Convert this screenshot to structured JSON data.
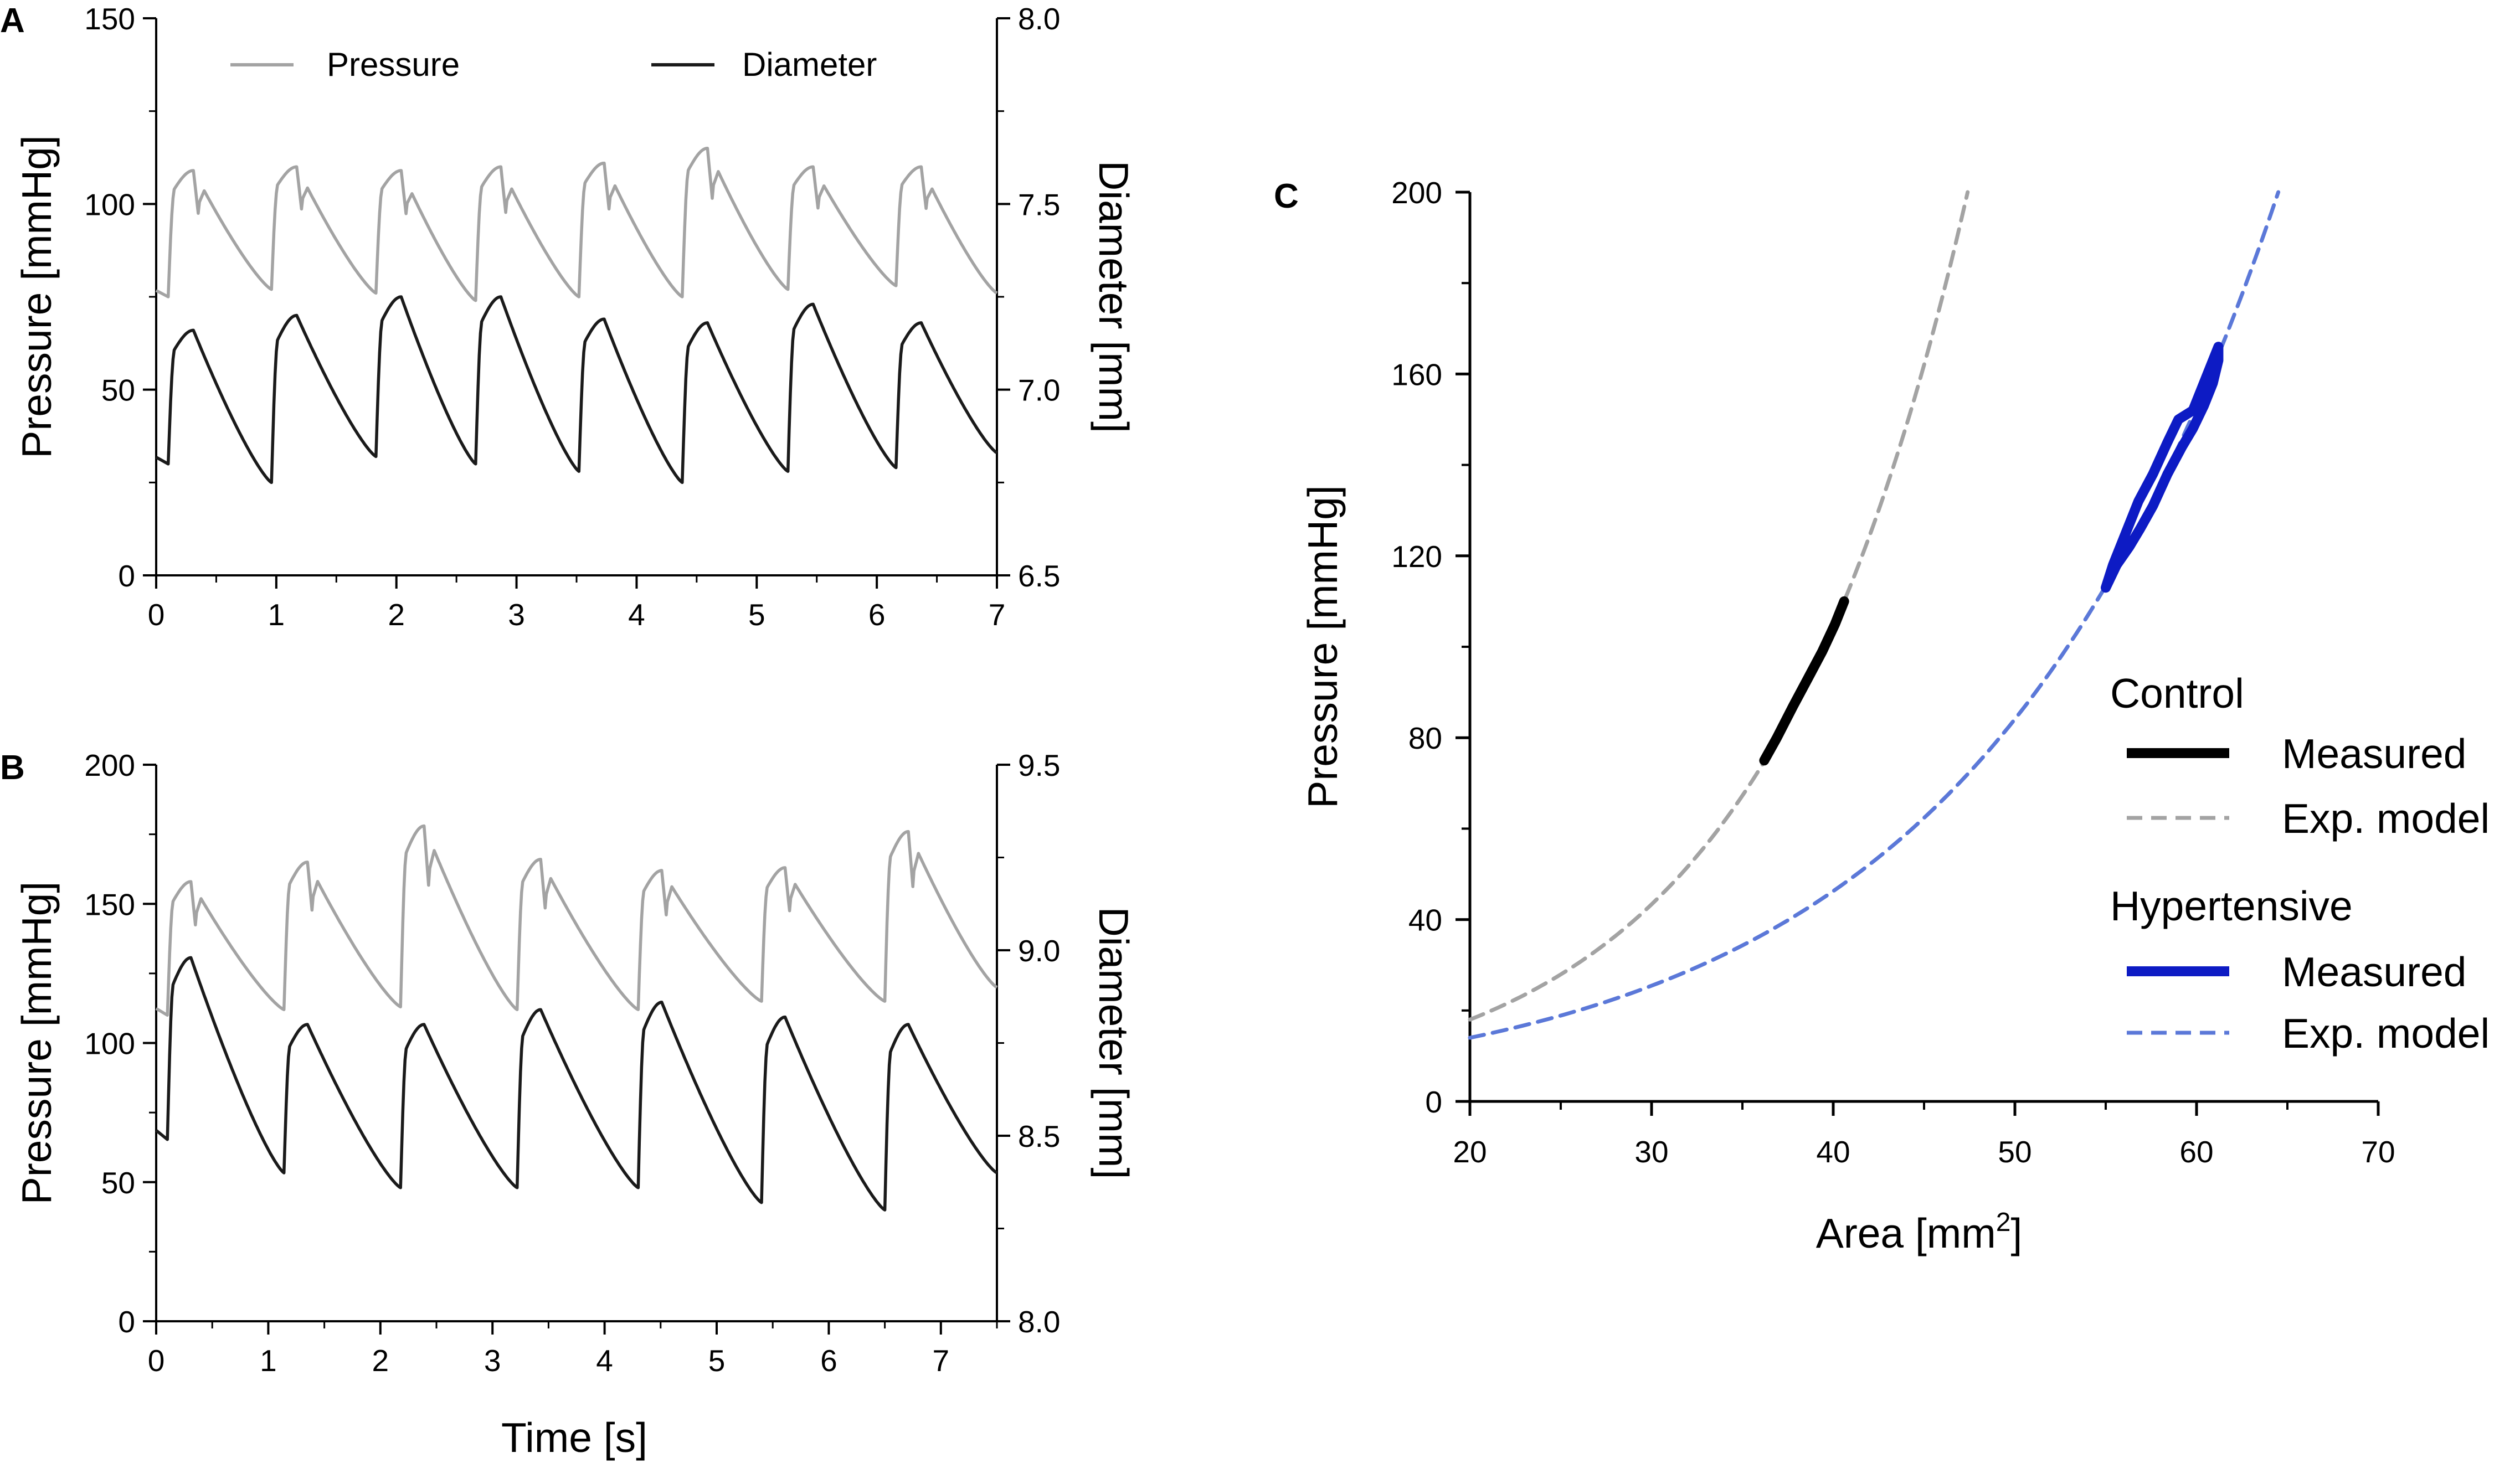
{
  "chart_data": [
    {
      "panel": "A",
      "type": "line",
      "xlabel": "",
      "ylabel_left": "Pressure [mmHg]",
      "ylabel_right": "Diameter [mm]",
      "xlim": [
        0,
        7
      ],
      "ylim_left": [
        0,
        150
      ],
      "ylim_right": [
        6.5,
        8.0
      ],
      "xticks": [
        0,
        1,
        2,
        3,
        4,
        5,
        6,
        7
      ],
      "yticks_left": [
        0,
        50,
        100,
        150
      ],
      "yticks_right": [
        6.5,
        7.0,
        7.5,
        8.0
      ],
      "ytick_right_labels": [
        "6.5",
        "7.0",
        "7.5",
        "8.0"
      ],
      "legend": [
        {
          "name": "Pressure",
          "color": "#a3a3a3"
        },
        {
          "name": "Diameter",
          "color": "#1a1a1a"
        }
      ],
      "series": [
        {
          "name": "Pressure",
          "axis": "left",
          "color": "#a3a3a3",
          "beats": [
            {
              "t": 0.1,
              "base": 75,
              "peak": 109
            },
            {
              "t": 0.96,
              "base": 77,
              "peak": 110
            },
            {
              "t": 1.83,
              "base": 76,
              "peak": 109
            },
            {
              "t": 2.66,
              "base": 74,
              "peak": 110
            },
            {
              "t": 3.52,
              "base": 75,
              "peak": 111
            },
            {
              "t": 4.38,
              "base": 75,
              "peak": 115
            },
            {
              "t": 5.26,
              "base": 77,
              "peak": 110
            },
            {
              "t": 6.16,
              "base": 78,
              "peak": 110
            }
          ],
          "end_value": 76
        },
        {
          "name": "Diameter",
          "axis": "right",
          "color": "#1a1a1a",
          "beats": [
            {
              "t": 0.1,
              "base": 6.8,
              "peak": 7.16
            },
            {
              "t": 0.96,
              "base": 6.75,
              "peak": 7.2
            },
            {
              "t": 1.83,
              "base": 6.82,
              "peak": 7.25
            },
            {
              "t": 2.66,
              "base": 6.8,
              "peak": 7.25
            },
            {
              "t": 3.52,
              "base": 6.78,
              "peak": 7.19
            },
            {
              "t": 4.38,
              "base": 6.75,
              "peak": 7.18
            },
            {
              "t": 5.26,
              "base": 6.78,
              "peak": 7.23
            },
            {
              "t": 6.16,
              "base": 6.79,
              "peak": 7.18
            }
          ],
          "end_value": 6.83
        }
      ]
    },
    {
      "panel": "B",
      "type": "line",
      "xlabel": "Time [s]",
      "ylabel_left": "Pressure [mmHg]",
      "ylabel_right": "Diameter [mm]",
      "xlim": [
        0,
        7.5
      ],
      "ylim_left": [
        0,
        200
      ],
      "ylim_right": [
        8.0,
        9.5
      ],
      "xticks": [
        0,
        1,
        2,
        3,
        4,
        5,
        6,
        7
      ],
      "yticks_left": [
        0,
        50,
        100,
        150,
        200
      ],
      "yticks_right": [
        8.0,
        8.5,
        9.0,
        9.5
      ],
      "ytick_right_labels": [
        "8.0",
        "8.5",
        "9.0",
        "9.5"
      ],
      "series": [
        {
          "name": "Pressure",
          "axis": "left",
          "color": "#a3a3a3",
          "beats": [
            {
              "t": 0.1,
              "base": 110,
              "peak": 158
            },
            {
              "t": 1.14,
              "base": 112,
              "peak": 165
            },
            {
              "t": 2.18,
              "base": 113,
              "peak": 178
            },
            {
              "t": 3.22,
              "base": 112,
              "peak": 166
            },
            {
              "t": 4.3,
              "base": 112,
              "peak": 162
            },
            {
              "t": 5.4,
              "base": 115,
              "peak": 163
            },
            {
              "t": 6.5,
              "base": 115,
              "peak": 176
            }
          ],
          "end_value": 120
        },
        {
          "name": "Diameter",
          "axis": "right",
          "color": "#1a1a1a",
          "beats": [
            {
              "t": 0.1,
              "base": 8.49,
              "peak": 8.98
            },
            {
              "t": 1.14,
              "base": 8.4,
              "peak": 8.8
            },
            {
              "t": 2.18,
              "base": 8.36,
              "peak": 8.8
            },
            {
              "t": 3.22,
              "base": 8.36,
              "peak": 8.84
            },
            {
              "t": 4.3,
              "base": 8.36,
              "peak": 8.86
            },
            {
              "t": 5.4,
              "base": 8.32,
              "peak": 8.82
            },
            {
              "t": 6.5,
              "base": 8.3,
              "peak": 8.8
            }
          ],
          "end_value": 8.4
        }
      ]
    },
    {
      "panel": "C",
      "type": "line",
      "xlabel_main": "Area [mm",
      "xlabel_sup": "2",
      "xlabel_end": "]",
      "ylabel": "Pressure [mmHg]",
      "xlim": [
        20,
        70
      ],
      "ylim": [
        0,
        200
      ],
      "xticks": [
        20,
        30,
        40,
        50,
        60,
        70
      ],
      "yticks": [
        0,
        40,
        80,
        120,
        160,
        200
      ],
      "legend_groups": [
        {
          "title": "Control",
          "items": [
            {
              "label": "Measured",
              "style": "solid",
              "color": "#000000"
            },
            {
              "label": "Exp. model",
              "style": "dashed",
              "color": "#a3a3a3"
            }
          ]
        },
        {
          "title": "Hypertensive",
          "items": [
            {
              "label": "Measured",
              "style": "solid",
              "color": "#0d1bc4"
            },
            {
              "label": "Exp. model",
              "style": "dashed",
              "color": "#5b78d8"
            }
          ]
        }
      ],
      "series": [
        {
          "name": "Control Exp. model",
          "style": "dashed",
          "color": "#a3a3a3",
          "model": "exp",
          "x_range": [
            20,
            47.4
          ],
          "p_at_start": 18,
          "p_at_end": 200
        },
        {
          "name": "Hypertensive Exp. model",
          "style": "dashed",
          "color": "#5b78d8",
          "model": "exp",
          "x_range": [
            20,
            64.5
          ],
          "p_at_start": 14,
          "p_at_end": 200
        },
        {
          "name": "Control Measured",
          "style": "solid",
          "color": "#000000",
          "x": [
            36.2,
            36.9,
            37.8,
            38.6,
            39.4,
            40.1,
            40.6
          ],
          "y": [
            75,
            80,
            87,
            93,
            99,
            105,
            110
          ]
        },
        {
          "name": "Hypertensive Measured",
          "style": "solid",
          "color": "#0d1bc4",
          "x": [
            55.0,
            55.6,
            56.3,
            56.9,
            57.6,
            58.4,
            59.2,
            59.8,
            60.4,
            60.9,
            61.2,
            61.2,
            60.5,
            59.8,
            59.0,
            58.4,
            57.6,
            56.8,
            56.0,
            55.4,
            55.0
          ],
          "y": [
            113,
            118,
            122,
            126,
            131,
            138,
            144,
            148,
            153,
            158,
            163,
            166,
            159,
            152,
            150,
            145,
            138,
            132,
            124,
            118,
            113
          ]
        }
      ]
    }
  ]
}
